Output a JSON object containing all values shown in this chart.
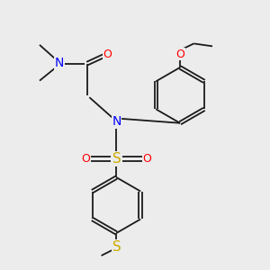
{
  "bg_color": "#ececec",
  "bond_color": "#1a1a1a",
  "N_color": "#0000ff",
  "O_color": "#ff0000",
  "S_color": "#ccaa00",
  "lw": 1.3,
  "dbo": 0.055,
  "figsize": [
    3.0,
    3.0
  ],
  "dpi": 100,
  "xlim": [
    0,
    10
  ],
  "ylim": [
    0,
    10
  ]
}
